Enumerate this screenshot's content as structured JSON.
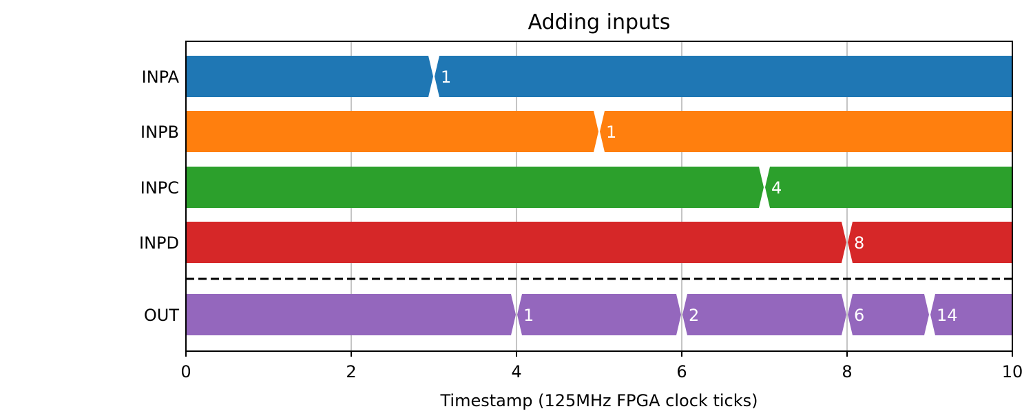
{
  "chart_data": {
    "type": "timing-diagram",
    "title": "Adding inputs",
    "xlabel": "Timestamp (125MHz FPGA clock ticks)",
    "xlim": [
      0,
      10
    ],
    "xticks": [
      0,
      2,
      4,
      6,
      8,
      10
    ],
    "grid": true,
    "signals": [
      {
        "name": "INPA",
        "color": "#1f77b4",
        "transitions": [
          3
        ],
        "labels": [
          "",
          "1"
        ]
      },
      {
        "name": "INPB",
        "color": "#ff7f0e",
        "transitions": [
          5
        ],
        "labels": [
          "",
          "1"
        ]
      },
      {
        "name": "INPC",
        "color": "#2ca02c",
        "transitions": [
          7
        ],
        "labels": [
          "",
          "4"
        ]
      },
      {
        "name": "INPD",
        "color": "#d62728",
        "transitions": [
          8
        ],
        "labels": [
          "",
          "8"
        ]
      },
      {
        "name": "OUT",
        "color": "#9467bd",
        "transitions": [
          4,
          6,
          8,
          9
        ],
        "labels": [
          "",
          "1",
          "2",
          "6",
          "14"
        ]
      }
    ],
    "separator": {
      "after_signal": "INPD",
      "style": "dashed"
    }
  }
}
